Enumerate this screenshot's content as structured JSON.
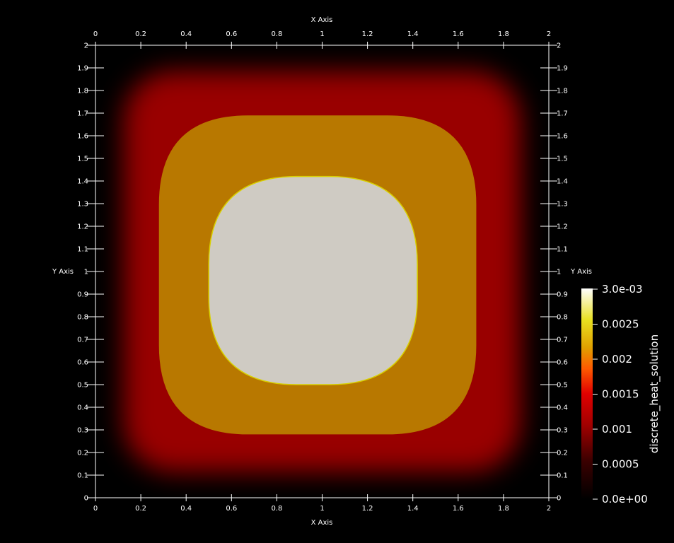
{
  "chart_data": {
    "type": "heatmap",
    "xlabel": "X Axis",
    "ylabel": "Y Axis",
    "xlim": [
      0,
      2
    ],
    "ylim": [
      0,
      2
    ],
    "x_ticks": [
      "0",
      "0.2",
      "0.4",
      "0.6",
      "0.8",
      "1",
      "1.2",
      "1.4",
      "1.6",
      "1.8",
      "2"
    ],
    "y_ticks": [
      "0",
      "0.1",
      "0.2",
      "0.3",
      "0.4",
      "0.5",
      "0.6",
      "0.7",
      "0.8",
      "0.9",
      "1",
      "1.1",
      "1.2",
      "1.3",
      "1.4",
      "1.5",
      "1.6",
      "1.7",
      "1.8",
      "1.9",
      "2"
    ],
    "field": {
      "name": "discrete_heat_solution",
      "range": [
        0.0,
        0.003
      ],
      "regions": [
        {
          "level": "outer",
          "value": 0.0015,
          "extent_x": [
            0.03,
            1.97
          ],
          "extent_y": [
            0.02,
            1.98
          ]
        },
        {
          "level": "middle",
          "value": 0.002,
          "extent_x": [
            0.28,
            1.68
          ],
          "extent_y": [
            0.28,
            1.69
          ]
        },
        {
          "level": "core",
          "value": 0.0029,
          "extent_x": [
            0.5,
            1.42
          ],
          "extent_y": [
            0.5,
            1.42
          ]
        }
      ]
    },
    "colorbar": {
      "title": "discrete_heat_solution",
      "labels": [
        "3.0e-03",
        "0.0025",
        "0.002",
        "0.0015",
        "0.001",
        "0.0005",
        "0.0e+00"
      ],
      "colors": [
        "#000000",
        "#8a0000",
        "#e60000",
        "#ff7800",
        "#e8d000",
        "#ffffb0",
        "#ffffff"
      ]
    }
  }
}
